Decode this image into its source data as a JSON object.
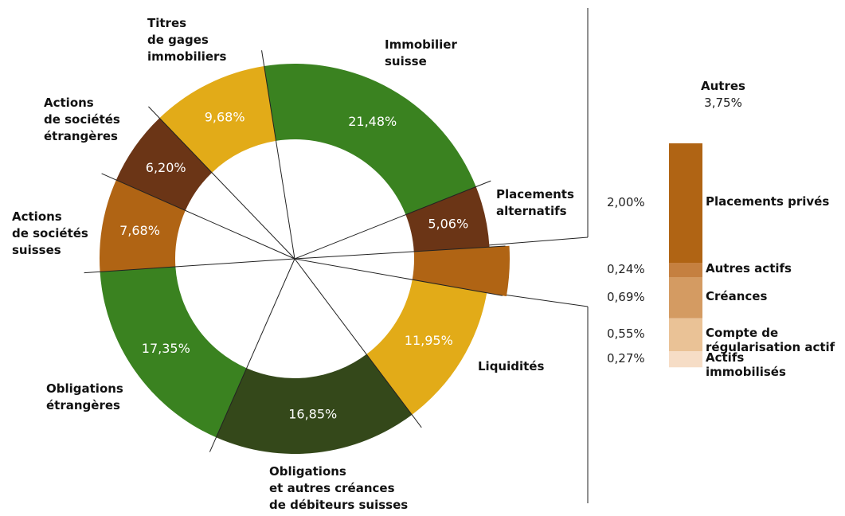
{
  "chart_data": {
    "type": "donut",
    "categories": [
      "Immobilier\nsuisse",
      "Placements\nalternatifs",
      "Autres",
      "Liquidités",
      "Obligations\net autres créances\nde débiteurs suisses",
      "Obligations\nétrangères",
      "Actions\nde sociétés\nsuisses",
      "Actions\nde sociétés\nétrangères",
      "Titres\nde gages\nimmobiliers"
    ],
    "values": [
      21.48,
      5.06,
      3.75,
      11.95,
      16.85,
      17.35,
      7.68,
      6.2,
      9.68
    ],
    "value_labels": [
      "21,48%",
      "5,06%",
      "3,75%",
      "11,95%",
      "16,85%",
      "17,35%",
      "7,68%",
      "6,20%",
      "9,68%"
    ],
    "colors": [
      "#3a8220",
      "#6b3516",
      "#b06414",
      "#e2ab18",
      "#34481a",
      "#3a8220",
      "#b06414",
      "#6b3516",
      "#e2ab18"
    ],
    "breakdown": {
      "categories": [
        "Placements privés",
        "Autres actifs",
        "Créances",
        "Compte de\nrégularisation actif",
        "Actifs\nimmobilisés"
      ],
      "values": [
        2.0,
        0.24,
        0.69,
        0.55,
        0.27
      ],
      "value_labels": [
        "2,00%",
        "0,24%",
        "0,69%",
        "0,55%",
        "0,27%"
      ],
      "colors": [
        "#b06414",
        "#c58040",
        "#d49b62",
        "#eac296",
        "#f6ddc6"
      ]
    }
  }
}
